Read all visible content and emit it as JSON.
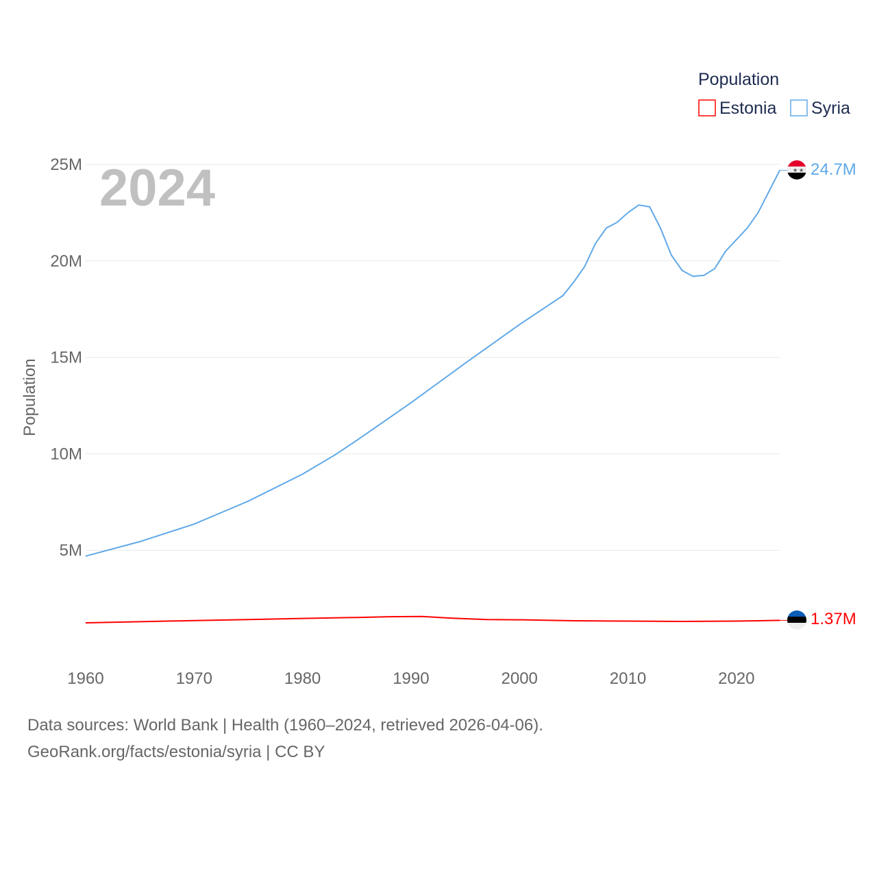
{
  "chart_data": {
    "type": "line",
    "title_year": "2024",
    "ylabel": "Population",
    "ylim": [
      0,
      25000000
    ],
    "yticks": [
      {
        "v": 5000000,
        "label": "5M"
      },
      {
        "v": 10000000,
        "label": "10M"
      },
      {
        "v": 15000000,
        "label": "15M"
      },
      {
        "v": 20000000,
        "label": "20M"
      },
      {
        "v": 25000000,
        "label": "25M"
      }
    ],
    "xlim": [
      1960,
      2024
    ],
    "xticks": [
      1960,
      1970,
      1980,
      1990,
      2000,
      2010,
      2020
    ],
    "legend": {
      "title": "Population",
      "placement": "top-right"
    },
    "series": [
      {
        "name": "Estonia",
        "color": "#ff0000",
        "end_label": "1.37M",
        "x": [
          1960,
          1965,
          1970,
          1975,
          1980,
          1985,
          1988,
          1991,
          1994,
          1997,
          2000,
          2005,
          2010,
          2015,
          2020,
          2022,
          2024
        ],
        "y": [
          1240000,
          1300000,
          1360000,
          1410000,
          1470000,
          1520000,
          1560000,
          1570000,
          1480000,
          1410000,
          1400000,
          1350000,
          1330000,
          1315000,
          1330000,
          1350000,
          1370000
        ]
      },
      {
        "name": "Syria",
        "color": "#5fa8e8",
        "end_label": "24.7M",
        "x": [
          1960,
          1965,
          1970,
          1975,
          1980,
          1983,
          1985,
          1990,
          1995,
          2000,
          2004,
          2005,
          2006,
          2007,
          2008,
          2009,
          2010,
          2011,
          2012,
          2013,
          2014,
          2015,
          2016,
          2017,
          2018,
          2019,
          2020,
          2021,
          2022,
          2023,
          2024
        ],
        "y": [
          4700000,
          5450000,
          6360000,
          7550000,
          8950000,
          9950000,
          10700000,
          12650000,
          14700000,
          16700000,
          18200000,
          18900000,
          19700000,
          20900000,
          21700000,
          22000000,
          22500000,
          22900000,
          22800000,
          21700000,
          20300000,
          19500000,
          19200000,
          19250000,
          19600000,
          20500000,
          21100000,
          21700000,
          22500000,
          23600000,
          24700000
        ]
      }
    ]
  },
  "footer": {
    "line1": "Data sources: World Bank | Health (1960–2024, retrieved 2026-04-06).",
    "line2": "GeoRank.org/facts/estonia/syria | CC BY"
  }
}
